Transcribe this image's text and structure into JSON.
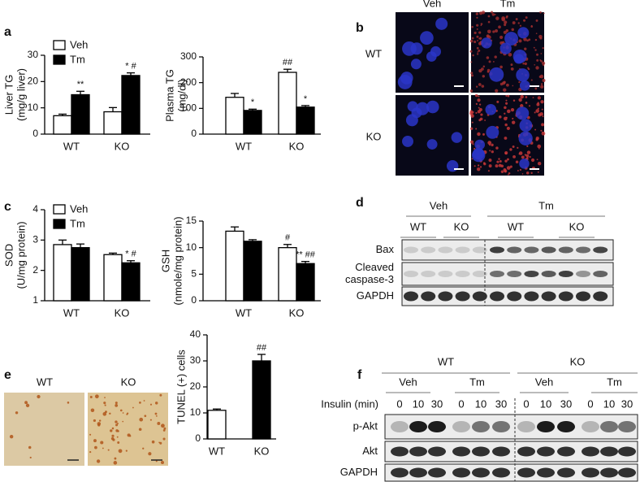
{
  "panel_labels": [
    "a",
    "b",
    "c",
    "d",
    "e",
    "f"
  ],
  "chart_data": [
    {
      "type": "bar",
      "y_label": [
        "Liver TG",
        "(mg/g liver)"
      ],
      "categories": [
        "WT",
        "KO"
      ],
      "legend": "upper left",
      "series": [
        {
          "name": "Veh",
          "color": "#ffffff",
          "values": [
            7,
            8.5
          ],
          "errors": [
            0.6,
            1.6
          ]
        },
        {
          "name": "Tm",
          "color": "#000000",
          "values": [
            15,
            22.3
          ],
          "errors": [
            1.3,
            1
          ],
          "annotations": [
            "**",
            "* #"
          ]
        }
      ],
      "ylim": [
        0,
        30
      ],
      "yticks": [
        0,
        10,
        20,
        30
      ]
    },
    {
      "type": "bar",
      "y_label": [
        "Plasma TG",
        "(mg/dl)"
      ],
      "categories": [
        "WT",
        "KO"
      ],
      "series": [
        {
          "name": "Veh",
          "color": "#ffffff",
          "values": [
            143,
            240
          ],
          "errors": [
            15,
            12
          ],
          "annotations": [
            null,
            "##"
          ]
        },
        {
          "name": "Tm",
          "color": "#000000",
          "values": [
            92,
            105
          ],
          "errors": [
            5,
            6
          ],
          "annotations": [
            "*",
            "*"
          ]
        }
      ],
      "ylim": [
        0,
        300
      ],
      "yticks": [
        0,
        100,
        200,
        300
      ]
    },
    {
      "type": "bar",
      "y_label": [
        "SOD",
        "(U/mg protein)"
      ],
      "categories": [
        "WT",
        "KO"
      ],
      "legend": "upper left",
      "series": [
        {
          "name": "Veh",
          "color": "#ffffff",
          "values": [
            2.85,
            2.52
          ],
          "errors": [
            0.15,
            0.05
          ]
        },
        {
          "name": "Tm",
          "color": "#000000",
          "values": [
            2.75,
            2.25
          ],
          "errors": [
            0.12,
            0.07
          ],
          "annotations": [
            null,
            "* #"
          ]
        }
      ],
      "ylim": [
        1,
        4
      ],
      "yticks": [
        1,
        2,
        3,
        4
      ]
    },
    {
      "type": "bar",
      "y_label": [
        "GSH",
        "(nmole/mg protein)"
      ],
      "categories": [
        "WT",
        "KO"
      ],
      "series": [
        {
          "name": "Veh",
          "color": "#ffffff",
          "values": [
            13.1,
            10
          ],
          "errors": [
            0.8,
            0.6
          ],
          "annotations": [
            null,
            "#"
          ]
        },
        {
          "name": "Tm",
          "color": "#000000",
          "values": [
            11.2,
            7
          ],
          "errors": [
            0.3,
            0.4
          ],
          "annotations": [
            null,
            "** ##"
          ]
        }
      ],
      "ylim": [
        0,
        15
      ],
      "yticks": [
        0,
        5,
        10,
        15
      ]
    },
    {
      "type": "bar",
      "y_label": [
        "TUNEL (+) cells"
      ],
      "categories": [
        "WT",
        "KO"
      ],
      "values": [
        11,
        30
      ],
      "errors": [
        0.5,
        2.5
      ],
      "colors": [
        "#ffffff",
        "#000000"
      ],
      "annotations": [
        null,
        "##"
      ],
      "ylim": [
        0,
        40
      ],
      "yticks": [
        0,
        10,
        20,
        30,
        40
      ]
    }
  ],
  "micrograph_b": {
    "columns": [
      "Veh",
      "Tm"
    ],
    "rows": [
      "WT",
      "KO"
    ]
  },
  "blot_d": {
    "groups": [
      {
        "label": "Veh",
        "subgroups": [
          "WT",
          "KO"
        ]
      },
      {
        "label": "Tm",
        "subgroups": [
          "WT",
          "KO"
        ]
      }
    ],
    "rows": [
      [
        "Bax"
      ],
      [
        "Cleaved",
        "caspase-3"
      ],
      [
        "GAPDH"
      ]
    ]
  },
  "micrograph_e": {
    "labels": [
      "WT",
      "KO"
    ]
  },
  "blot_f": {
    "groups": [
      {
        "label": "WT",
        "subgroups": [
          "Veh",
          "Tm"
        ]
      },
      {
        "label": "KO",
        "subgroups": [
          "Veh",
          "Tm"
        ]
      }
    ],
    "time_label": "Insulin (min)",
    "times": [
      0,
      10,
      30,
      0,
      10,
      30,
      0,
      10,
      30,
      0,
      10,
      30
    ],
    "rows": [
      "p-Akt",
      "Akt",
      "GAPDH"
    ]
  }
}
